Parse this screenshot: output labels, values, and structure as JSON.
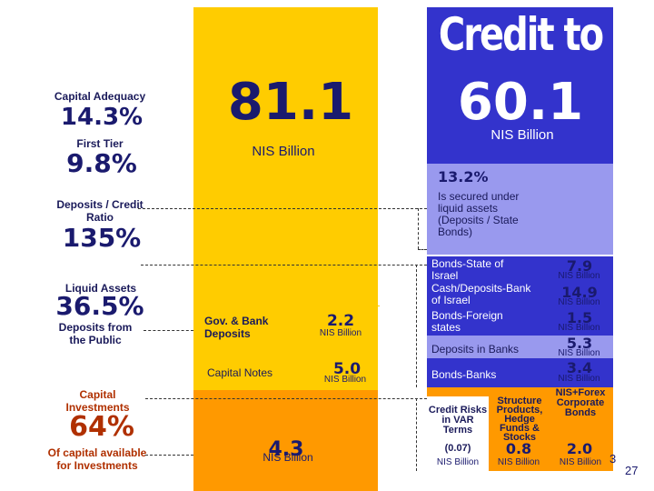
{
  "left": {
    "capital_adequacy": {
      "label": "Capital Adequacy",
      "value": "14.3%"
    },
    "first_tier": {
      "label": "First Tier",
      "value": "9.8%"
    },
    "deposits_credit": {
      "label": "Deposits / Credit Ratio",
      "value": "135%"
    },
    "liquid_assets": {
      "label": "Liquid Assets",
      "value": "36.5%"
    },
    "deposits_public": {
      "label": "Deposits from the Public"
    },
    "capital_investments": {
      "label": "Capital Investments",
      "value": "64%"
    },
    "capital_available": {
      "label": "Of capital available for Investments"
    }
  },
  "middle": {
    "total_value": "81.1",
    "total_unit": "NIS Billion",
    "gov_bank": {
      "label": "Gov. & Bank Deposits",
      "value": "2.2",
      "unit": "NIS Billion"
    },
    "capital_notes": {
      "label": "Capital Notes",
      "value": "5.0",
      "unit": "NIS Billion"
    },
    "capital_bottom": {
      "value": "4.3",
      "unit": "NIS Billion"
    }
  },
  "right": {
    "credit_title": "Credit to",
    "credit_value": "60.1",
    "credit_unit": "NIS Billion",
    "secured_pct": "13.2%",
    "secured_text": "Is secured under liquid assets (Deposits / State Bonds)",
    "rows": [
      {
        "label": "Bonds-State of Israel",
        "value": "7.9",
        "unit": "NIS Billion"
      },
      {
        "label": "Cash/Deposits-Bank of Israel",
        "value": "14.9",
        "unit": "NIS Billion"
      },
      {
        "label": "Bonds-Foreign states",
        "value": "1.5",
        "unit": "NIS Billion"
      },
      {
        "label": "Deposits in Banks",
        "value": "5.3",
        "unit": "NIS Billion"
      },
      {
        "label": "Bonds-Banks",
        "value": "3.4",
        "unit": "NIS Billion"
      }
    ],
    "bottom": {
      "credit_risks": "Credit Risks in VAR Terms",
      "credit_risks_value": "(0.07)",
      "credit_risks_unit": "NIS Billion",
      "structure": "Structure Products, Hedge Funds & Stocks",
      "structure_value": "0.8",
      "structure_unit": "NIS Billion",
      "nis_forex": "NIS+Forex Corporate Bonds",
      "nis_forex_value": "2.0",
      "nis_forex_unit": "NIS Billion"
    }
  },
  "page_number": "27",
  "stray_digit": "3",
  "colors": {
    "yellow": "#ffcc00",
    "blue": "#3333cc",
    "orange": "#ff9900",
    "navy": "#1a1a6e"
  }
}
